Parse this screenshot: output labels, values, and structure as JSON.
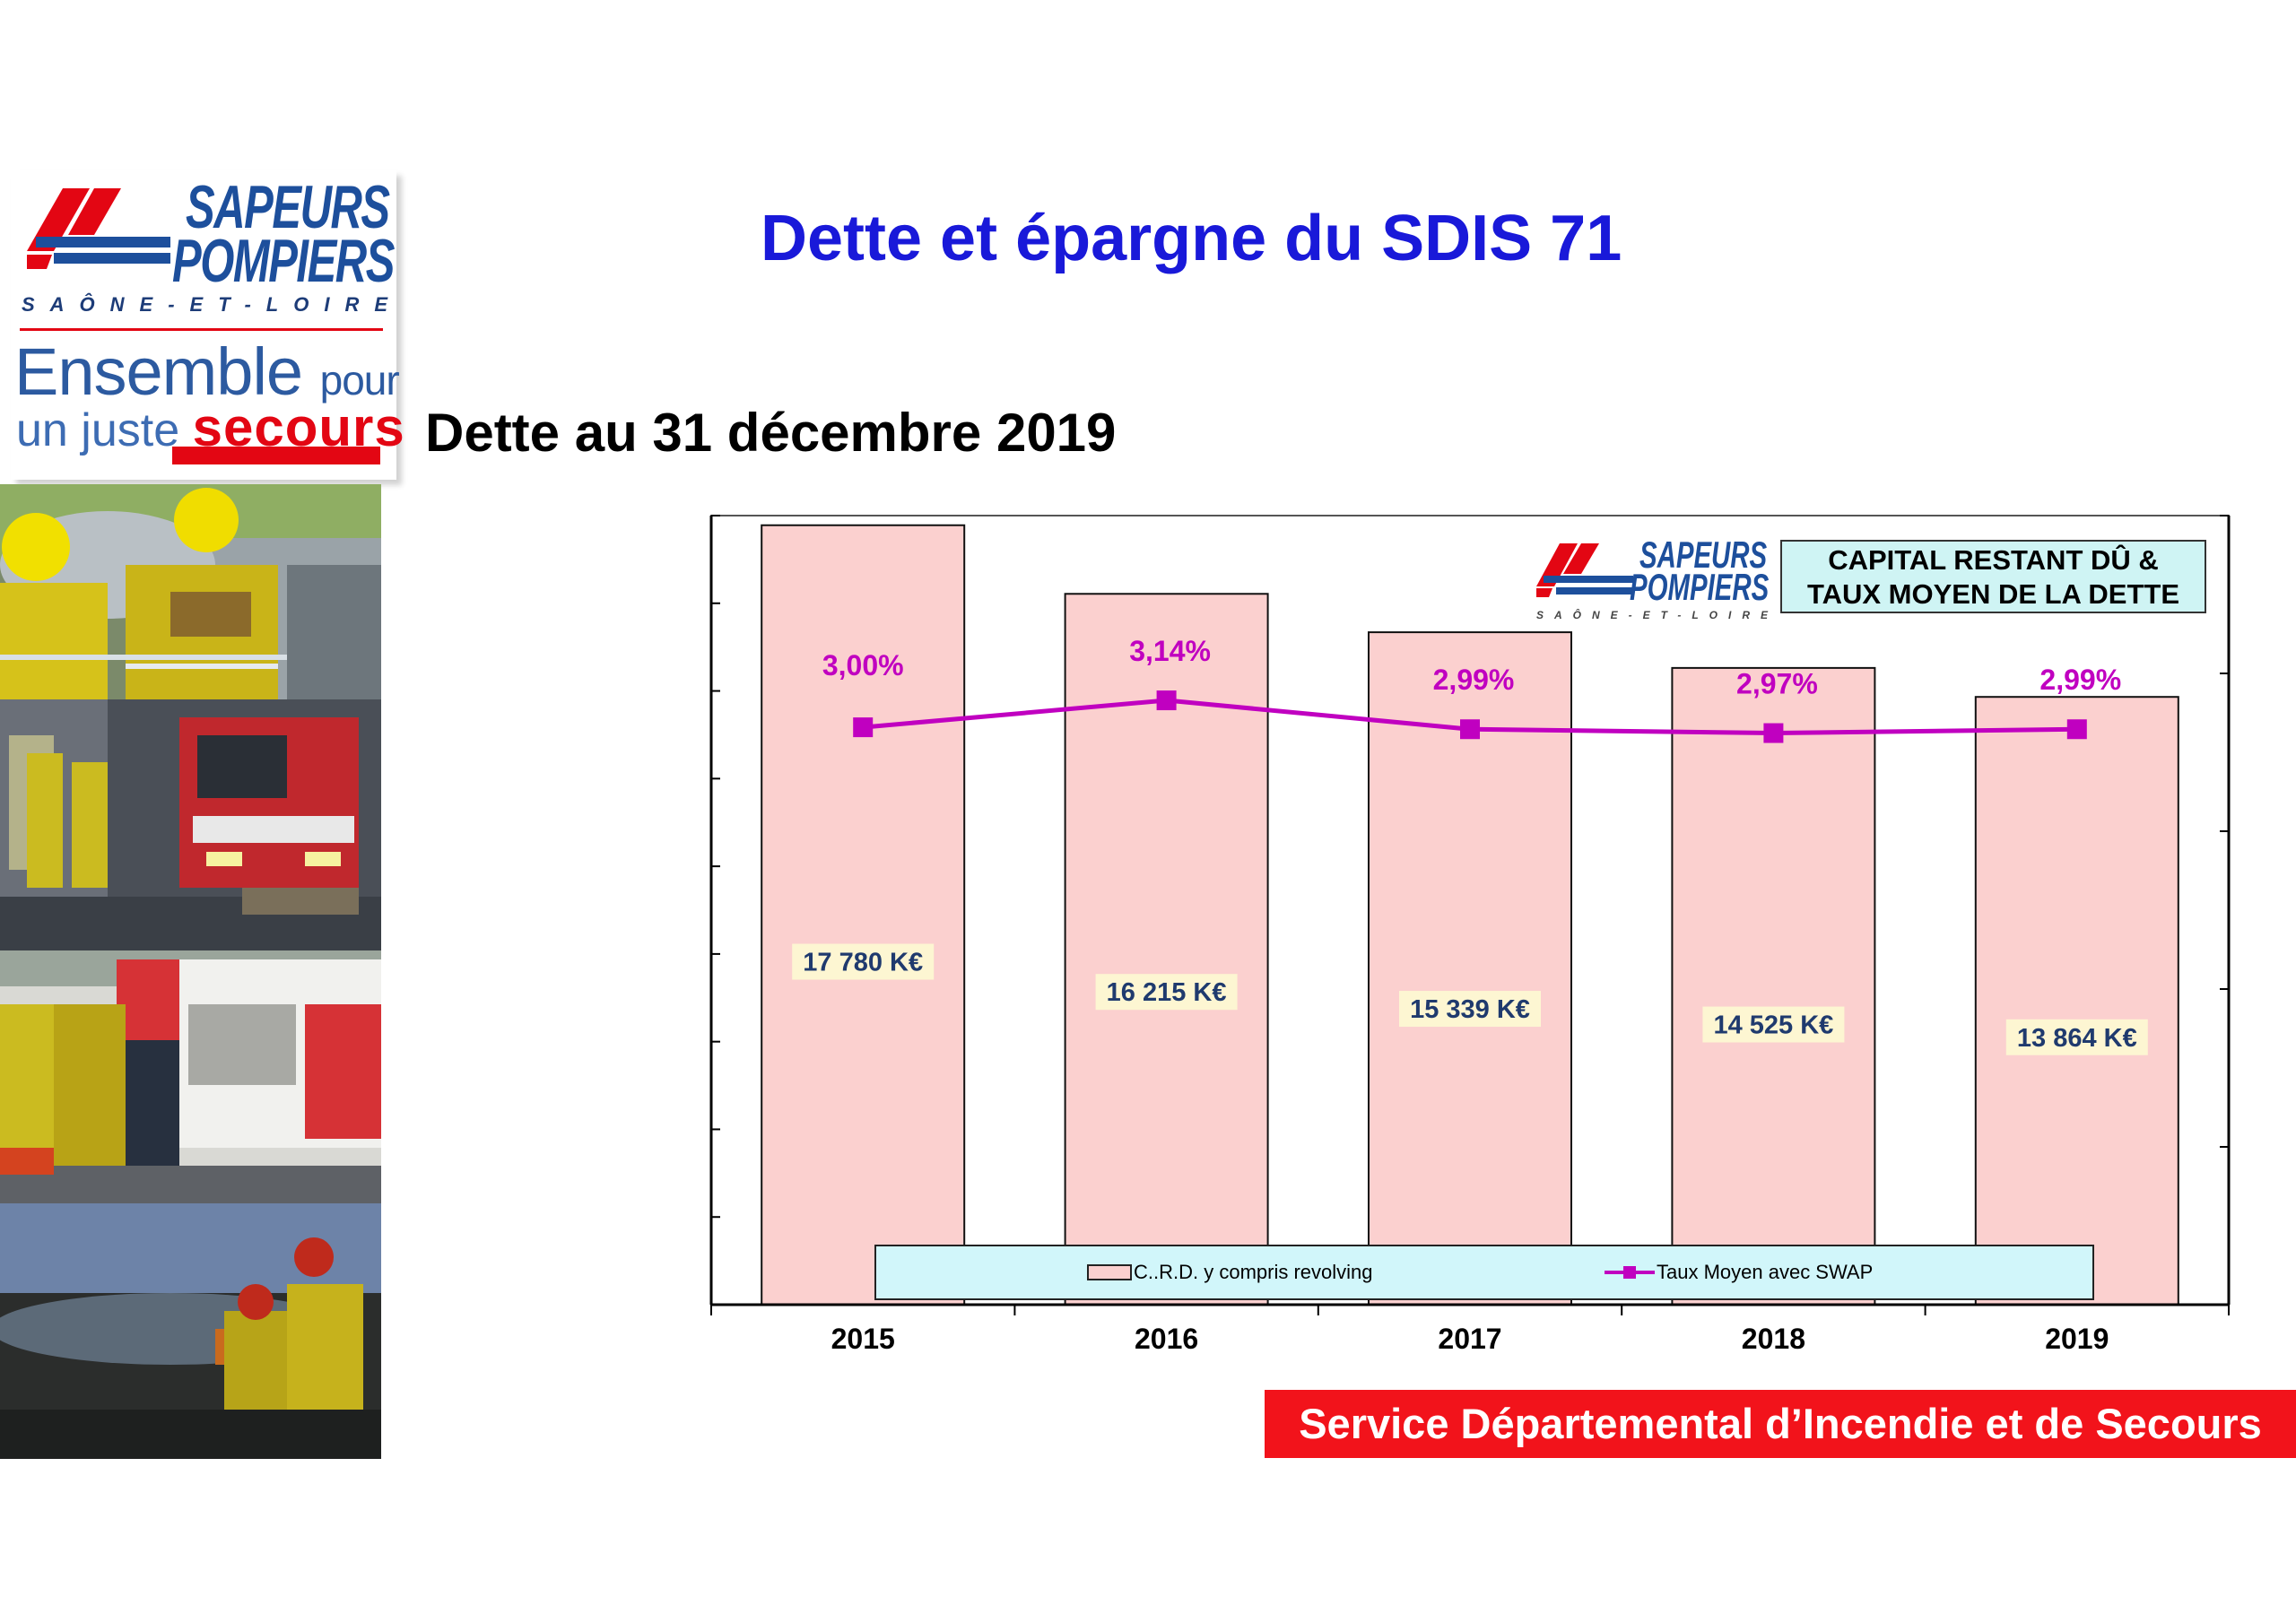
{
  "page": {
    "title": "Dette et épargne du SDIS 71",
    "subtitle": "Dette au 31 décembre 2019",
    "footer": "Service Départemental d’Incendie et de Secours"
  },
  "logo": {
    "line1": "SAPEURS",
    "line2": "POMPIERS",
    "region": "SAÔNE-ET-LOIRE",
    "slogan_1": "Ensemble",
    "slogan_1b": "pour",
    "slogan_2": "un juste",
    "slogan_2b": "secours"
  },
  "colors": {
    "title_blue": "#1919d9",
    "brand_blue": "#1d4f9c",
    "brand_red": "#e30613",
    "bar_fill": "#fbd0cf",
    "line_color": "#c000c0",
    "label_bg": "#fdf6d2",
    "label_text": "#1f3a6e",
    "legend_bg": "#d1f6fa",
    "footer_bg": "#f2131b"
  },
  "chart_data": {
    "type": "bar",
    "title": "CAPITAL RESTANT DÛ & TAUX MOYEN DE LA DETTE",
    "title_line1": "CAPITAL RESTANT DÛ &",
    "title_line2": "TAUX MOYEN DE LA DETTE",
    "categories": [
      "2015",
      "2016",
      "2017",
      "2018",
      "2019"
    ],
    "series": [
      {
        "name": "C..R.D. y compris revolving",
        "kind": "bar",
        "values": [
          17780,
          16215,
          15339,
          14525,
          13864
        ],
        "labels": [
          "17 780  K€",
          "16 215  K€",
          "15 339  K€",
          "14 525  K€",
          "13 864  K€"
        ]
      },
      {
        "name": "Taux Moyen avec SWAP",
        "kind": "line",
        "values": [
          3.0,
          3.14,
          2.99,
          2.97,
          2.99
        ],
        "labels": [
          "3,00%",
          "3,14%",
          "2,99%",
          "2,97%",
          "2,99%"
        ]
      }
    ],
    "grid": false,
    "legend_position": "bottom"
  }
}
